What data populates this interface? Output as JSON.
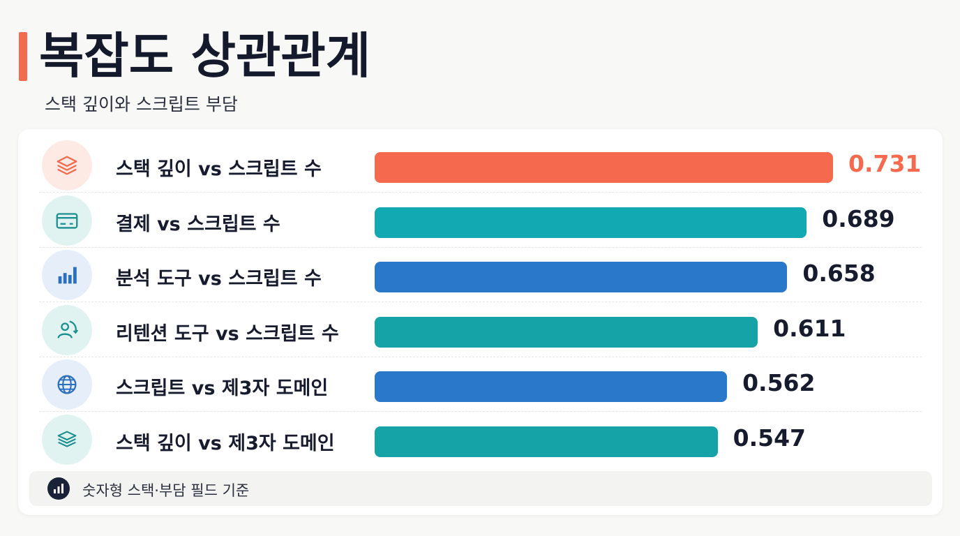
{
  "header": {
    "title": "복잡도 상관관계",
    "subtitle": "스택 깊이와 스크립트 부담"
  },
  "chart_data": {
    "type": "bar",
    "orientation": "horizontal",
    "title": "복잡도 상관관계",
    "subtitle": "스택 깊이와 스크립트 부담",
    "categories": [
      "스택 깊이 vs 스크립트 수",
      "결제 vs 스크립트 수",
      "분석 도구 vs 스크립트 수",
      "리텐션 도구 vs 스크립트 수",
      "스크립트 vs 제3자 도메인",
      "스택 깊이 vs 제3자 도메인"
    ],
    "values": [
      0.731,
      0.689,
      0.658,
      0.611,
      0.562,
      0.547
    ],
    "value_labels": [
      "0.731",
      "0.689",
      "0.658",
      "0.611",
      "0.562",
      "0.547"
    ],
    "bar_colors": [
      "#f56a4f",
      "#13a9b2",
      "#2a78c9",
      "#16a3a7",
      "#2a78c9",
      "#16a3a7"
    ],
    "icons": [
      "layers-icon",
      "credit-card-icon",
      "bar-chart-icon",
      "user-cycle-icon",
      "globe-icon",
      "stack-icon"
    ],
    "xlim": [
      0,
      0.731
    ],
    "highlight_color": "#f56a4f",
    "grid": false,
    "legend": "none"
  },
  "footer": {
    "note": "숫자형 스택·부담 필드 기준",
    "icon": "bar-chart-icon"
  }
}
